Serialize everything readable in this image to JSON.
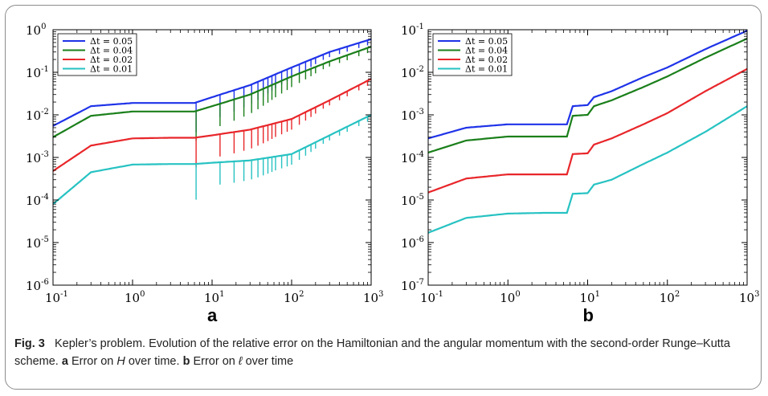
{
  "caption": {
    "fig_label": "Fig. 3",
    "text_1": "Kepler’s problem. Evolution of the relative error on the Hamiltonian and the angular momentum with the second-order Runge–Kutta scheme. ",
    "label_a": "a",
    "text_a": " Error on ",
    "var_a": "H",
    "text_a2": " over time. ",
    "label_b": "b",
    "text_b": " Error on ",
    "var_b": "ℓ",
    "text_b2": " over time"
  },
  "chart_data": [
    {
      "panel_label": "a",
      "type": "line",
      "x_scale": "log",
      "y_scale": "log",
      "xlim": [
        0.1,
        1000
      ],
      "ylim": [
        1e-06,
        1
      ],
      "x_ticks": [
        {
          "base": "10",
          "exp": "-1"
        },
        {
          "base": "10",
          "exp": "0"
        },
        {
          "base": "10",
          "exp": "1"
        },
        {
          "base": "10",
          "exp": "2"
        },
        {
          "base": "10",
          "exp": "3"
        }
      ],
      "y_ticks": [
        {
          "base": "10",
          "exp": "-6"
        },
        {
          "base": "10",
          "exp": "-5"
        },
        {
          "base": "10",
          "exp": "-4"
        },
        {
          "base": "10",
          "exp": "-3"
        },
        {
          "base": "10",
          "exp": "-2"
        },
        {
          "base": "10",
          "exp": "-1"
        },
        {
          "base": "10",
          "exp": "0"
        }
      ],
      "legend_position": "top-left",
      "series": [
        {
          "name": "Δt = 0.05",
          "color": "#1f33e8",
          "x": [
            0.1,
            0.3,
            1,
            3,
            6,
            10,
            30,
            100,
            300,
            1000
          ],
          "y": [
            0.0055,
            0.016,
            0.019,
            0.019,
            0.019,
            0.026,
            0.05,
            0.13,
            0.3,
            0.6
          ]
        },
        {
          "name": "Δt = 0.04",
          "color": "#1a7f1a",
          "x": [
            0.1,
            0.3,
            1,
            3,
            6,
            10,
            30,
            100,
            300,
            1000
          ],
          "y": [
            0.003,
            0.0095,
            0.012,
            0.012,
            0.012,
            0.016,
            0.03,
            0.08,
            0.18,
            0.4
          ]
        },
        {
          "name": "Δt = 0.02",
          "color": "#e8262a",
          "x": [
            0.1,
            0.3,
            1,
            3,
            6,
            10,
            30,
            100,
            300,
            1000
          ],
          "y": [
            0.00048,
            0.0019,
            0.0028,
            0.0029,
            0.0029,
            0.0033,
            0.0045,
            0.008,
            0.022,
            0.07
          ]
        },
        {
          "name": "Δt = 0.01",
          "color": "#27c2c2",
          "x": [
            0.1,
            0.3,
            1,
            3,
            6,
            10,
            30,
            100,
            300,
            1000
          ],
          "y": [
            8e-05,
            0.00045,
            0.00068,
            0.0007,
            0.0007,
            0.00075,
            0.00085,
            0.0012,
            0.0033,
            0.01
          ]
        }
      ]
    },
    {
      "panel_label": "b",
      "type": "line",
      "x_scale": "log",
      "y_scale": "log",
      "xlim": [
        0.1,
        1000
      ],
      "ylim": [
        1e-07,
        0.1
      ],
      "x_ticks": [
        {
          "base": "10",
          "exp": "-1"
        },
        {
          "base": "10",
          "exp": "0"
        },
        {
          "base": "10",
          "exp": "1"
        },
        {
          "base": "10",
          "exp": "2"
        },
        {
          "base": "10",
          "exp": "3"
        }
      ],
      "y_ticks": [
        {
          "base": "10",
          "exp": "-7"
        },
        {
          "base": "10",
          "exp": "-6"
        },
        {
          "base": "10",
          "exp": "-5"
        },
        {
          "base": "10",
          "exp": "-4"
        },
        {
          "base": "10",
          "exp": "-3"
        },
        {
          "base": "10",
          "exp": "-2"
        },
        {
          "base": "10",
          "exp": "-1"
        }
      ],
      "legend_position": "top-left",
      "series": [
        {
          "name": "Δt = 0.05",
          "color": "#1f33e8",
          "x": [
            0.1,
            0.3,
            1,
            3,
            5.5,
            6.5,
            10,
            12,
            20,
            50,
            100,
            300,
            1000
          ],
          "y": [
            0.00028,
            0.0005,
            0.0006,
            0.0006,
            0.0006,
            0.0016,
            0.0017,
            0.0026,
            0.0036,
            0.0077,
            0.013,
            0.035,
            0.095
          ]
        },
        {
          "name": "Δt = 0.04",
          "color": "#1a7f1a",
          "x": [
            0.1,
            0.3,
            1,
            3,
            5.5,
            6.5,
            10,
            12,
            20,
            50,
            100,
            300,
            1000
          ],
          "y": [
            0.00013,
            0.00025,
            0.00031,
            0.00031,
            0.00031,
            0.00095,
            0.001,
            0.0016,
            0.0022,
            0.0045,
            0.008,
            0.022,
            0.062
          ]
        },
        {
          "name": "Δt = 0.02",
          "color": "#e8262a",
          "x": [
            0.1,
            0.3,
            1,
            3,
            5.5,
            6.5,
            10,
            12,
            20,
            50,
            100,
            300,
            1000
          ],
          "y": [
            1.5e-05,
            3.2e-05,
            4e-05,
            4e-05,
            4e-05,
            0.00012,
            0.000125,
            0.0002,
            0.00028,
            0.0006,
            0.0011,
            0.0036,
            0.012
          ]
        },
        {
          "name": "Δt = 0.01",
          "color": "#27c2c2",
          "x": [
            0.1,
            0.3,
            1,
            3,
            5.5,
            6.5,
            10,
            12,
            20,
            50,
            100,
            300,
            1000
          ],
          "y": [
            1.7e-06,
            3.8e-06,
            4.8e-06,
            5e-06,
            5e-06,
            1.4e-05,
            1.45e-05,
            2.3e-05,
            3e-05,
            7e-05,
            0.00013,
            0.0004,
            0.0016
          ]
        }
      ]
    }
  ]
}
